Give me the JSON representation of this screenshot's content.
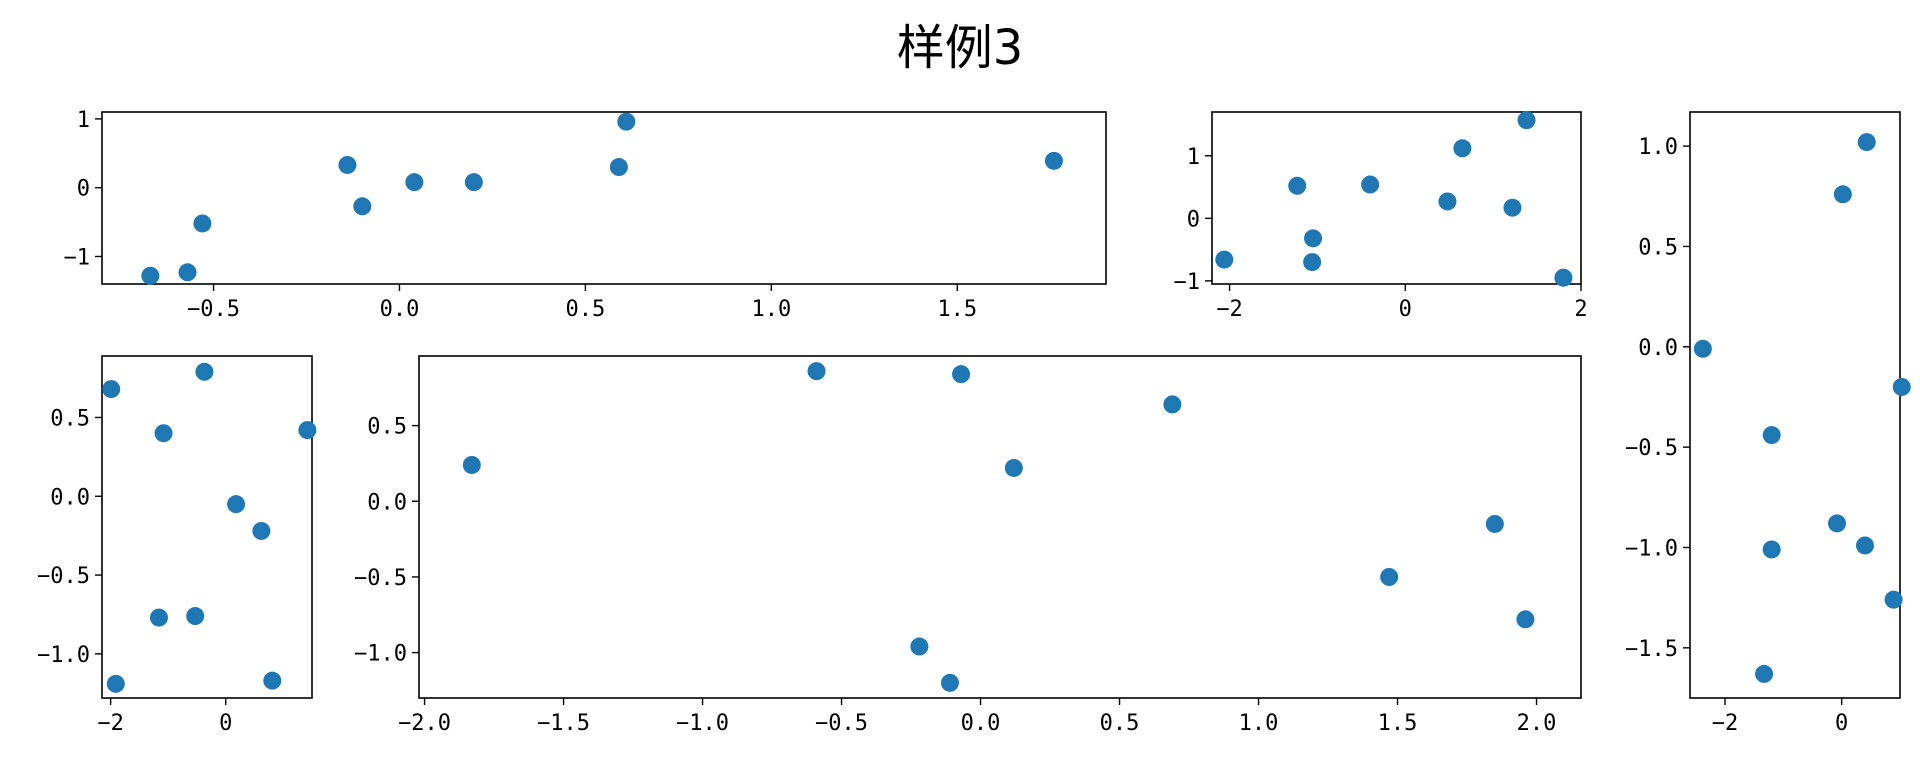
{
  "figure": {
    "title": "样例3"
  },
  "chart_data": [
    {
      "type": "scatter",
      "title": "",
      "xlabel": "",
      "ylabel": "",
      "color": "#1f77b4",
      "xlim": [
        -0.8,
        1.9
      ],
      "ylim": [
        -1.4,
        1.1
      ],
      "xticks": [
        -0.5,
        0.0,
        0.5,
        1.0,
        1.5
      ],
      "xtick_labels": [
        "-0.5",
        "0.0",
        "0.5",
        "1.0",
        "1.5"
      ],
      "yticks": [
        1,
        0,
        -1
      ],
      "ytick_labels": [
        "1",
        "0",
        "-1"
      ],
      "x": [
        -0.67,
        -0.57,
        -0.53,
        -0.14,
        -0.1,
        0.04,
        0.2,
        0.59,
        0.61,
        1.76
      ],
      "y": [
        -1.28,
        -1.23,
        -0.52,
        0.33,
        -0.27,
        0.08,
        0.08,
        0.3,
        0.96,
        0.39
      ]
    },
    {
      "type": "scatter",
      "title": "",
      "xlabel": "",
      "ylabel": "",
      "color": "#1f77b4",
      "xlim": [
        -2.2,
        2.0
      ],
      "ylim": [
        -1.05,
        1.7
      ],
      "xticks": [
        -2,
        0,
        2
      ],
      "xtick_labels": [
        "-2",
        "0",
        "2"
      ],
      "yticks": [
        1,
        0,
        -1
      ],
      "ytick_labels": [
        "1",
        "0",
        "-1"
      ],
      "x": [
        -2.06,
        -1.23,
        -1.05,
        -1.06,
        -0.4,
        0.48,
        0.65,
        1.22,
        1.38,
        1.8
      ],
      "y": [
        -0.66,
        0.52,
        -0.32,
        -0.7,
        0.54,
        0.27,
        1.12,
        0.17,
        1.57,
        -0.95
      ]
    },
    {
      "type": "scatter",
      "title": "",
      "xlabel": "",
      "ylabel": "",
      "color": "#1f77b4",
      "xlim": [
        -2.6,
        1.0
      ],
      "ylim": [
        -1.75,
        1.17
      ],
      "xticks": [
        -2,
        0
      ],
      "xtick_labels": [
        "-2",
        "0"
      ],
      "yticks": [
        1.0,
        0.5,
        0.0,
        -0.5,
        -1.0,
        -1.5
      ],
      "ytick_labels": [
        "1.0",
        "0.5",
        "0.0",
        "-0.5",
        "-1.0",
        "-1.5"
      ],
      "x": [
        -2.38,
        0.43,
        0.02,
        1.03,
        -1.2,
        -0.08,
        0.4,
        -1.2,
        0.89,
        -1.33
      ],
      "y": [
        -0.01,
        1.02,
        0.76,
        -0.2,
        -0.44,
        -0.88,
        -0.99,
        -1.01,
        -1.26,
        -1.63
      ]
    },
    {
      "type": "scatter",
      "title": "",
      "xlabel": "",
      "ylabel": "",
      "color": "#1f77b4",
      "xlim": [
        -2.15,
        1.5
      ],
      "ylim": [
        -1.28,
        0.89
      ],
      "xticks": [
        -2,
        0
      ],
      "xtick_labels": [
        "-2",
        "0"
      ],
      "yticks": [
        0.5,
        0.0,
        -0.5,
        -1.0
      ],
      "ytick_labels": [
        "0.5",
        "0.0",
        "-0.5",
        "-1.0"
      ],
      "x": [
        -1.99,
        -0.37,
        -1.08,
        1.42,
        0.18,
        0.62,
        -1.16,
        -0.53,
        0.81,
        -1.91
      ],
      "y": [
        0.68,
        0.79,
        0.4,
        0.42,
        -0.05,
        -0.22,
        -0.77,
        -0.76,
        -1.17,
        -1.19
      ]
    },
    {
      "type": "scatter",
      "title": "",
      "xlabel": "",
      "ylabel": "",
      "color": "#1f77b4",
      "xlim": [
        -2.02,
        2.16
      ],
      "ylim": [
        -1.3,
        0.96
      ],
      "xticks": [
        -2.0,
        -1.5,
        -1.0,
        -0.5,
        0.0,
        0.5,
        1.0,
        1.5,
        2.0
      ],
      "xtick_labels": [
        "-2.0",
        "-1.5",
        "-1.0",
        "-0.5",
        "0.0",
        "0.5",
        "1.0",
        "1.5",
        "2.0"
      ],
      "yticks": [
        0.5,
        0.0,
        -0.5,
        -1.0
      ],
      "ytick_labels": [
        "0.5",
        "0.0",
        "-0.5",
        "-1.0"
      ],
      "x": [
        -1.83,
        -0.59,
        -0.07,
        0.12,
        0.69,
        -0.22,
        -0.11,
        1.47,
        1.85,
        1.96
      ],
      "y": [
        0.24,
        0.86,
        0.84,
        0.22,
        0.64,
        -0.96,
        -1.2,
        -0.5,
        -0.15,
        -0.78
      ]
    }
  ]
}
